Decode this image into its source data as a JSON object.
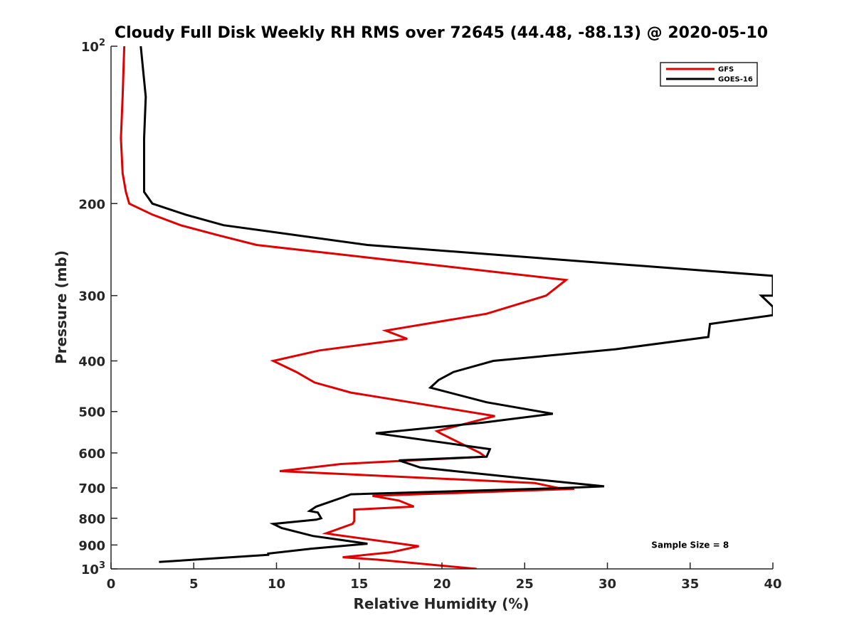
{
  "chart_data": {
    "type": "line",
    "title": "Cloudy Full Disk Weekly RH RMS over 72645 (44.48, -88.13) @ 2020-05-10",
    "xlabel": "Relative Humidity (%)",
    "ylabel": "Pressure (mb)",
    "xlim": [
      0,
      40
    ],
    "ylim": [
      100,
      1000
    ],
    "yscale": "log",
    "y_reversed": true,
    "grid": false,
    "legend_placement": "top-right",
    "xticks": [
      0,
      5,
      10,
      15,
      20,
      25,
      30,
      35,
      40
    ],
    "xtick_labels": [
      "0",
      "5",
      "10",
      "15",
      "20",
      "25",
      "30",
      "35",
      "40"
    ],
    "yticks": [
      100,
      200,
      300,
      400,
      500,
      600,
      700,
      800,
      900,
      1000
    ],
    "ytick_labels": [
      {
        "base": "10",
        "exp": "2"
      },
      {
        "base": "200",
        "exp": ""
      },
      {
        "base": "300",
        "exp": ""
      },
      {
        "base": "400",
        "exp": ""
      },
      {
        "base": "500",
        "exp": ""
      },
      {
        "base": "600",
        "exp": ""
      },
      {
        "base": "700",
        "exp": ""
      },
      {
        "base": "800",
        "exp": ""
      },
      {
        "base": "900",
        "exp": ""
      },
      {
        "base": "10",
        "exp": "3"
      }
    ],
    "series": [
      {
        "name": "GFS",
        "color": "#e00000",
        "points": [
          [
            0.8,
            100
          ],
          [
            0.7,
            125
          ],
          [
            0.6,
            150
          ],
          [
            0.7,
            175
          ],
          [
            0.9,
            190
          ],
          [
            1.1,
            200
          ],
          [
            2.5,
            210
          ],
          [
            4.2,
            220
          ],
          [
            6.5,
            230
          ],
          [
            8.8,
            240
          ],
          [
            27.5,
            280
          ],
          [
            26.3,
            300
          ],
          [
            22.7,
            325
          ],
          [
            16.6,
            350
          ],
          [
            17.9,
            363
          ],
          [
            12.6,
            382
          ],
          [
            9.8,
            400
          ],
          [
            11.2,
            420
          ],
          [
            12.3,
            440
          ],
          [
            14.5,
            460
          ],
          [
            23.2,
            510
          ],
          [
            19.7,
            545
          ],
          [
            19.9,
            550
          ],
          [
            22.3,
            600
          ],
          [
            22.6,
            610
          ],
          [
            13.9,
            630
          ],
          [
            10.2,
            650
          ],
          [
            25.6,
            685
          ],
          [
            27.0,
            700
          ],
          [
            28.0,
            703
          ],
          [
            15.8,
            725
          ],
          [
            17.4,
            740
          ],
          [
            18.3,
            760
          ],
          [
            14.7,
            770
          ],
          [
            14.7,
            810
          ],
          [
            14.6,
            820
          ],
          [
            13.0,
            855
          ],
          [
            13.5,
            860
          ],
          [
            18.6,
            905
          ],
          [
            16.9,
            930
          ],
          [
            14.0,
            950
          ],
          [
            16.1,
            960
          ],
          [
            22.1,
            1000
          ]
        ]
      },
      {
        "name": "GOES-16",
        "color": "#000000",
        "points": [
          [
            1.8,
            100
          ],
          [
            2.1,
            125
          ],
          [
            2.0,
            150
          ],
          [
            2.0,
            175
          ],
          [
            2.0,
            190
          ],
          [
            2.5,
            200
          ],
          [
            4.5,
            210
          ],
          [
            6.8,
            220
          ],
          [
            15.5,
            240
          ],
          [
            40.0,
            275
          ],
          [
            40.0,
            300
          ],
          [
            39.3,
            300
          ],
          [
            40.0,
            315
          ],
          [
            40.0,
            327
          ],
          [
            36.2,
            340
          ],
          [
            36.1,
            360
          ],
          [
            30.5,
            380
          ],
          [
            23.1,
            400
          ],
          [
            20.7,
            420
          ],
          [
            19.8,
            435
          ],
          [
            19.3,
            450
          ],
          [
            22.7,
            480
          ],
          [
            26.7,
            505
          ],
          [
            22.5,
            525
          ],
          [
            16.0,
            550
          ],
          [
            22.9,
            590
          ],
          [
            22.7,
            610
          ],
          [
            17.4,
            620
          ],
          [
            18.7,
            640
          ],
          [
            24.8,
            670
          ],
          [
            29.8,
            695
          ],
          [
            27.5,
            700
          ],
          [
            14.5,
            720
          ],
          [
            14.0,
            730
          ],
          [
            12.4,
            760
          ],
          [
            12.0,
            775
          ],
          [
            12.5,
            780
          ],
          [
            12.7,
            800
          ],
          [
            12.4,
            805
          ],
          [
            9.8,
            820
          ],
          [
            10.3,
            835
          ],
          [
            12.2,
            865
          ],
          [
            15.5,
            895
          ],
          [
            12.1,
            915
          ],
          [
            9.5,
            935
          ],
          [
            9.5,
            940
          ],
          [
            2.9,
            970
          ]
        ]
      }
    ],
    "annotations": [
      {
        "text": "Sample Size = 8",
        "x": 35,
        "y": 900
      }
    ]
  }
}
